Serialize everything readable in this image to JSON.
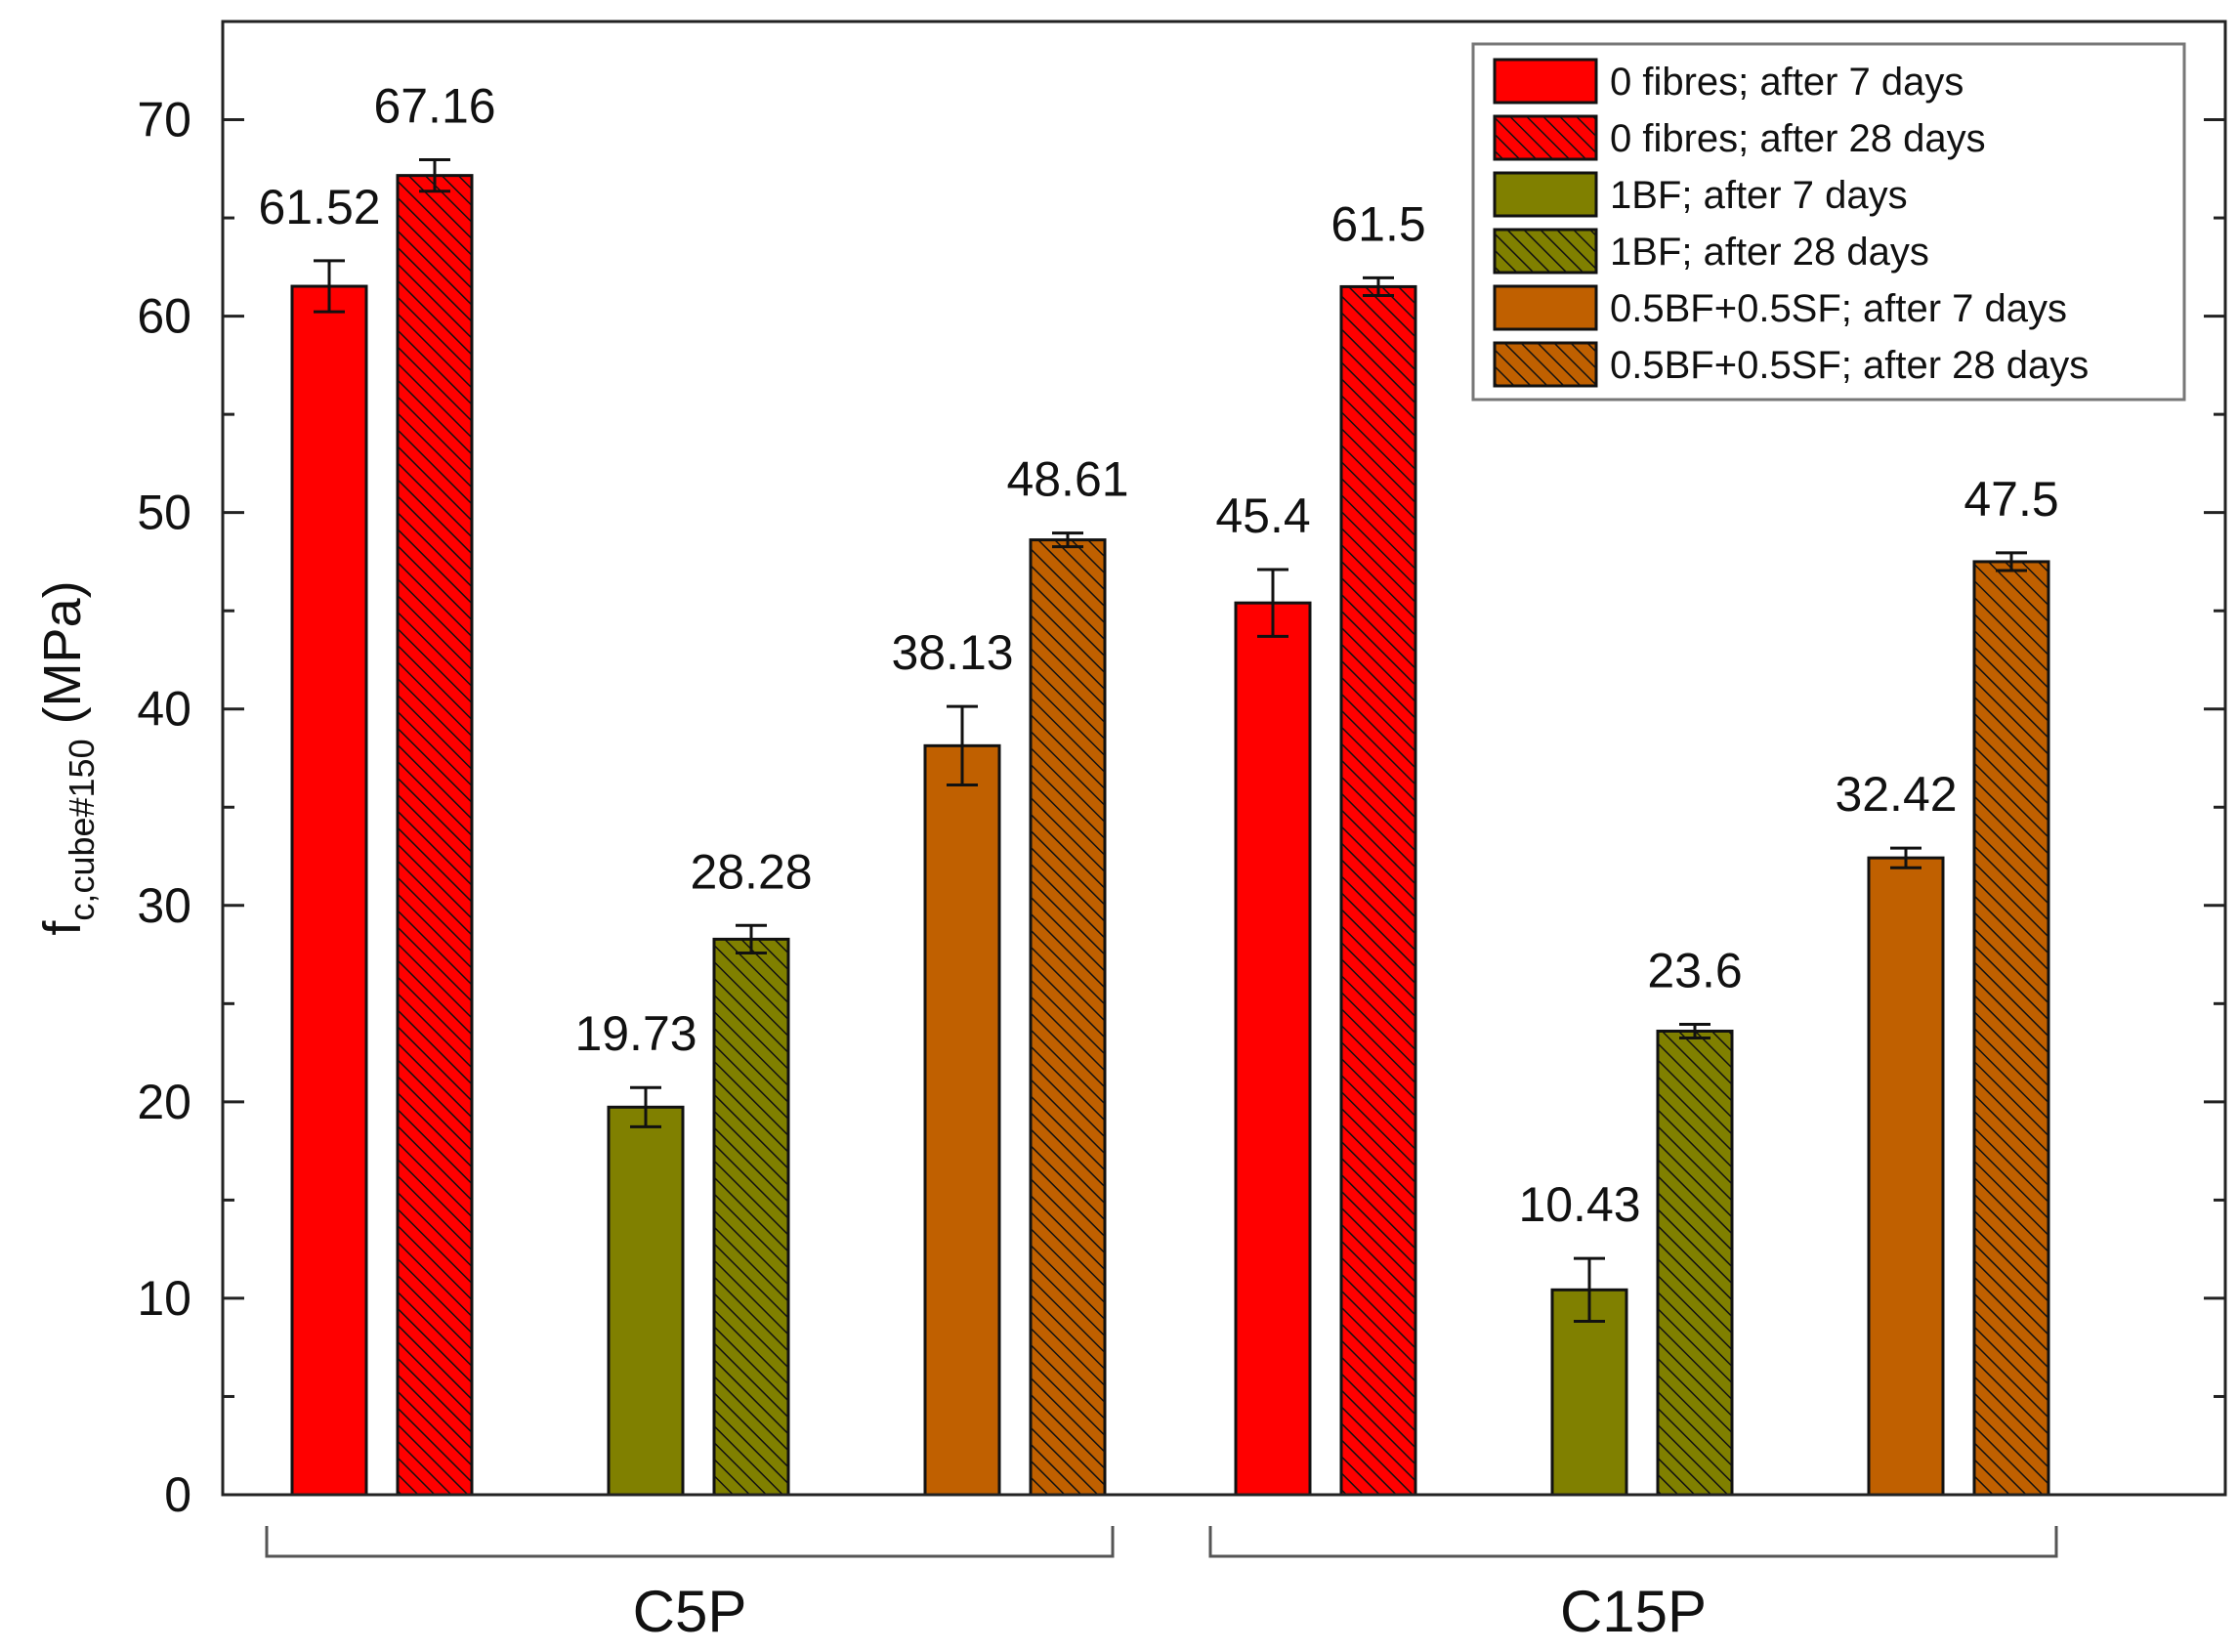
{
  "chart_data": {
    "type": "bar",
    "title": "",
    "xlabel": "",
    "ylabel": {
      "prefix": "f",
      "subscript": "c,cube#150",
      "unit": "(MPa)"
    },
    "ylim": [
      0,
      75
    ],
    "yticks": [
      0,
      10,
      20,
      30,
      40,
      50,
      60,
      70
    ],
    "grid": false,
    "legend_position": "top-right",
    "groups": [
      "C5P",
      "C15P"
    ],
    "series": [
      {
        "name": "0 fibres; after 7 days",
        "color": "#ff0000",
        "hatched": false,
        "values": [
          61.52,
          45.4
        ],
        "labels": [
          "61.52",
          "45.4"
        ],
        "errors": [
          1.3,
          1.7
        ]
      },
      {
        "name": "0 fibres; after 28 days",
        "color": "#ff0000",
        "hatched": true,
        "values": [
          67.16,
          61.5
        ],
        "labels": [
          "67.16",
          "61.5"
        ],
        "errors": [
          0.8,
          0.45
        ]
      },
      {
        "name": "1BF; after 7 days",
        "color": "#808000",
        "hatched": false,
        "values": [
          19.73,
          10.43
        ],
        "labels": [
          "19.73",
          "10.43"
        ],
        "errors": [
          1.0,
          1.6
        ]
      },
      {
        "name": "1BF; after 28 days",
        "color": "#808000",
        "hatched": true,
        "values": [
          28.28,
          23.6
        ],
        "labels": [
          "28.28",
          "23.6"
        ],
        "errors": [
          0.7,
          0.35
        ]
      },
      {
        "name": "0.5BF+0.5SF; after 7 days",
        "color": "#c06000",
        "hatched": false,
        "values": [
          38.13,
          32.42
        ],
        "labels": [
          "38.13",
          "32.42"
        ],
        "errors": [
          2.0,
          0.5
        ]
      },
      {
        "name": "0.5BF+0.5SF; after 28 days",
        "color": "#c06000",
        "hatched": true,
        "values": [
          48.61,
          47.5
        ],
        "labels": [
          "48.61",
          "47.5"
        ],
        "errors": [
          0.35,
          0.45
        ]
      }
    ]
  }
}
